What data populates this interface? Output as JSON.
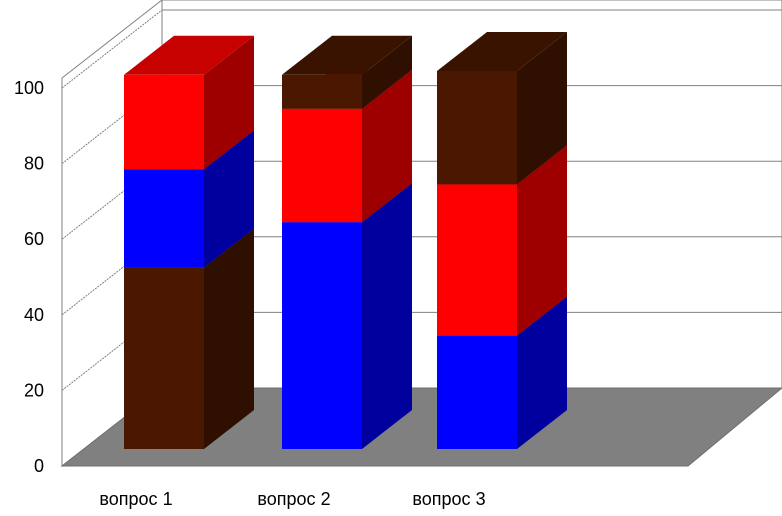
{
  "chart_data": {
    "type": "bar",
    "stacked": true,
    "three_d": true,
    "categories": [
      "вопрос 1",
      "вопрос 2",
      "вопрос 3"
    ],
    "series": [
      {
        "color": "#4a1800",
        "values": [
          48,
          0,
          0
        ]
      },
      {
        "color": "#0000ff",
        "values": [
          26,
          60,
          30
        ]
      },
      {
        "color": "#ff0000",
        "values": [
          25,
          30,
          40
        ]
      },
      {
        "color": "#4a1800",
        "values": [
          0,
          9,
          30
        ]
      }
    ],
    "y_ticks": [
      "0",
      "20",
      "40",
      "60",
      "80",
      "100"
    ],
    "ylim": [
      0,
      100
    ],
    "grid": true,
    "floor_color": "#808080",
    "title": "",
    "xlabel": "",
    "ylabel": ""
  }
}
